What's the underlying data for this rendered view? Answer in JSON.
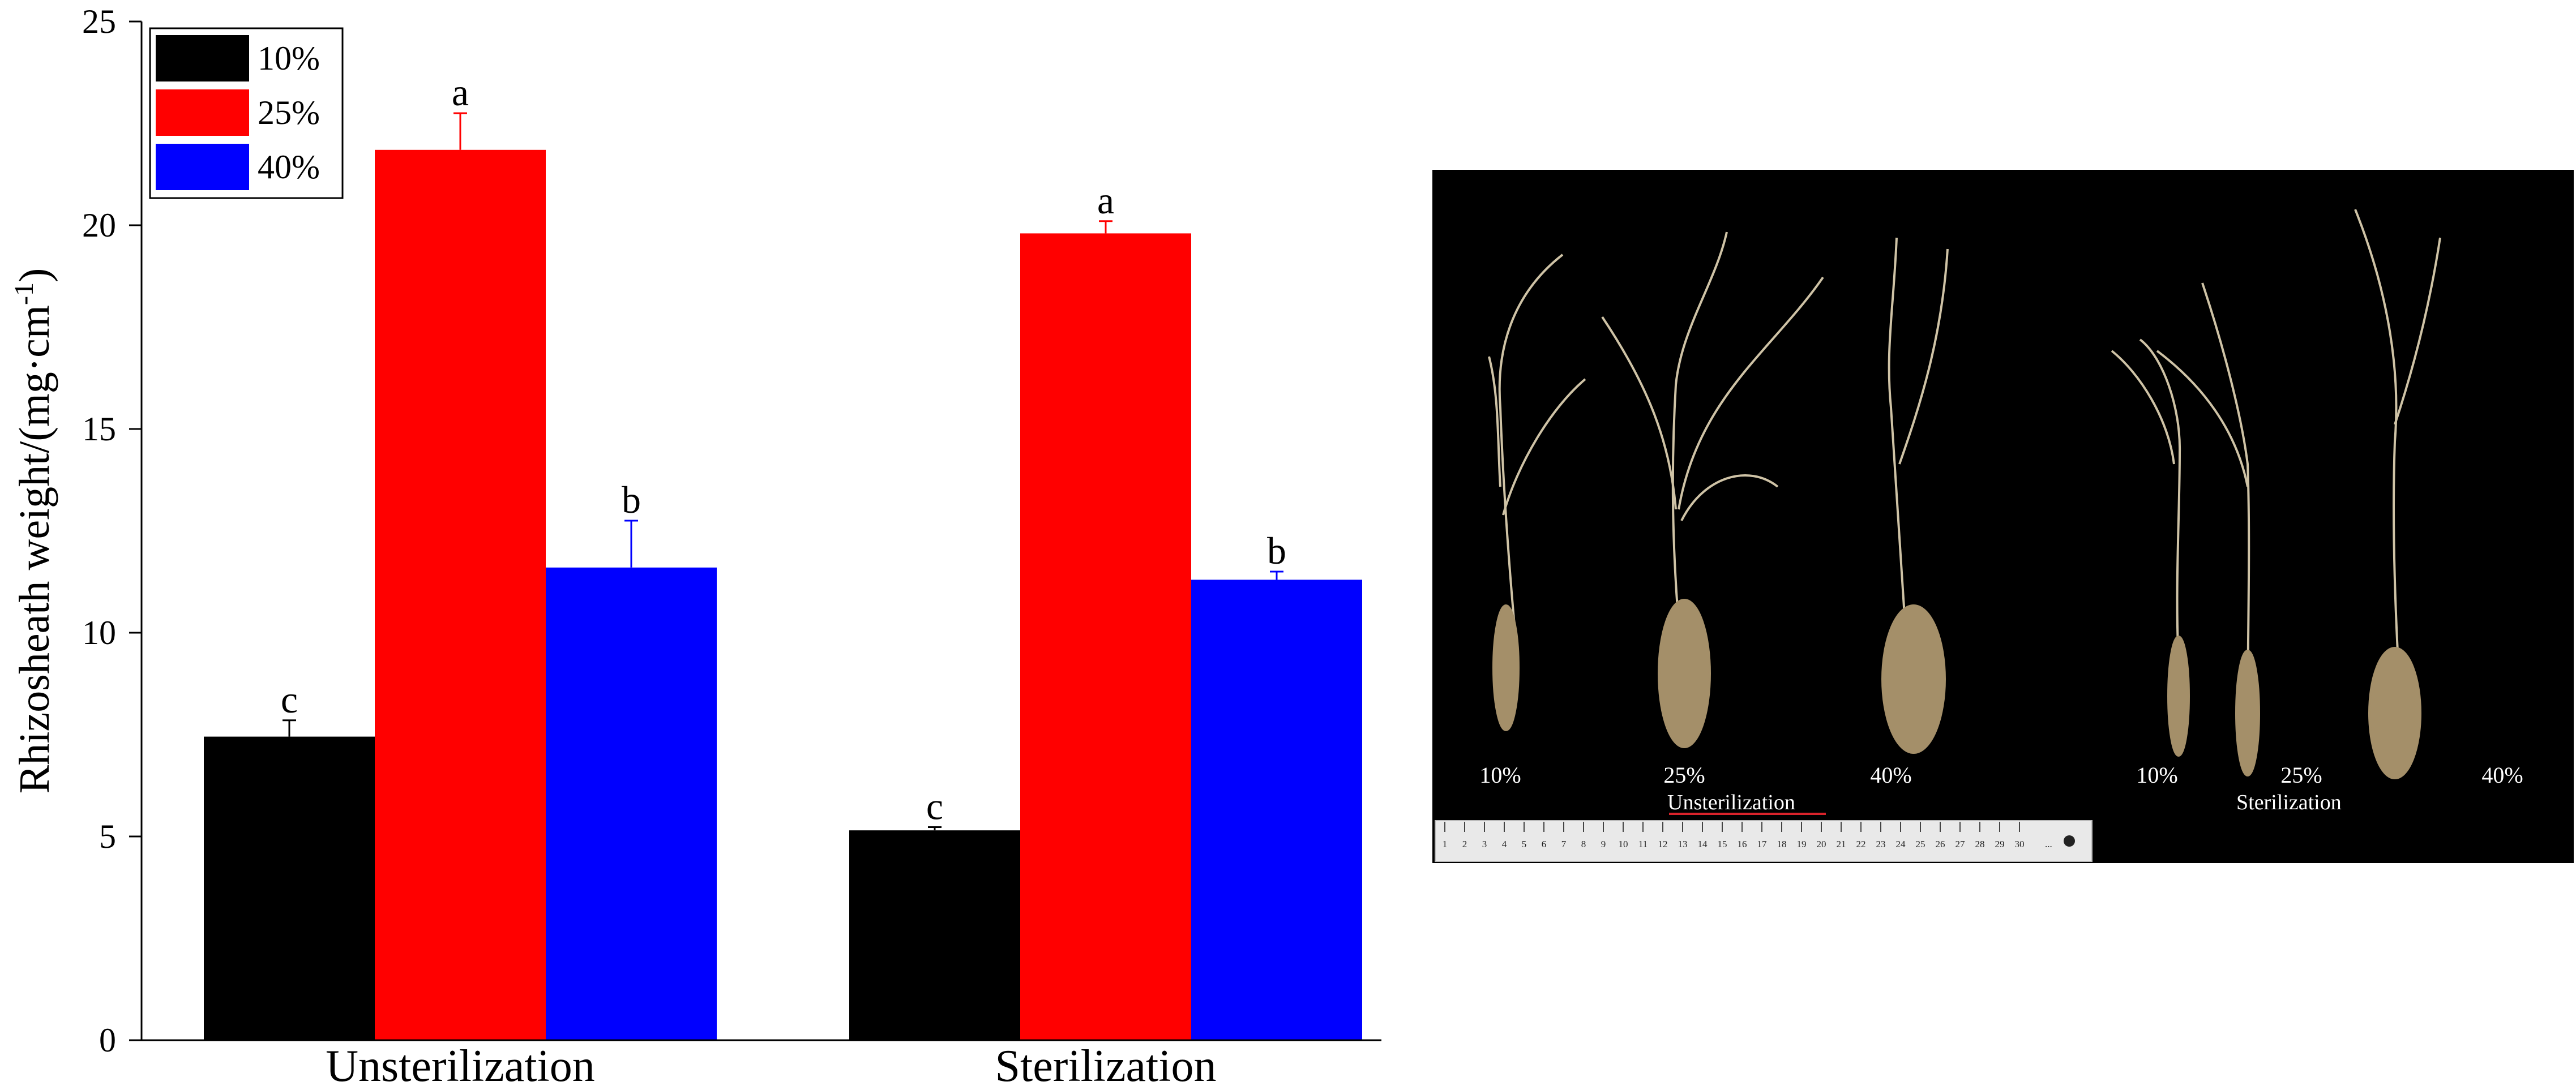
{
  "chart_data": {
    "type": "bar",
    "categories": [
      "Unsterilization",
      "Sterilization"
    ],
    "series": [
      {
        "name": "10%",
        "color": "#000000",
        "values": [
          7.45,
          5.15
        ],
        "errors": [
          0.4,
          0.08
        ],
        "letters": [
          "c",
          "c"
        ]
      },
      {
        "name": "25%",
        "color": "#ff0000",
        "values": [
          21.85,
          19.8
        ],
        "errors": [
          0.9,
          0.3
        ],
        "letters": [
          "a",
          "a"
        ]
      },
      {
        "name": "40%",
        "color": "#0000ff",
        "values": [
          11.6,
          11.3
        ],
        "errors": [
          1.15,
          0.2
        ],
        "letters": [
          "b",
          "b"
        ]
      }
    ],
    "ylabel": "Rhizosheath weight/(mg·cm",
    "ylabel_sup": "-1",
    "ylabel_close": ")",
    "ylim": [
      0,
      25
    ],
    "yticks": [
      0,
      5,
      10,
      15,
      20,
      25
    ],
    "legend_position": "top-left",
    "grid": false
  },
  "photo": {
    "unsterilized_labels": [
      "10%",
      "25%",
      "40%"
    ],
    "sterilized_labels": [
      "10%",
      "25%",
      "40%"
    ],
    "group_labels": [
      "Unsterilization",
      "Sterilization"
    ],
    "ruler_marks": [
      "1",
      "2",
      "3",
      "4",
      "5",
      "6",
      "7",
      "8",
      "9",
      "10",
      "11",
      "12",
      "13",
      "14",
      "15",
      "16",
      "17",
      "18",
      "19",
      "20",
      "21",
      "22",
      "23",
      "24",
      "25",
      "26",
      "27",
      "28",
      "29",
      "30"
    ],
    "ruler_suffix": "..."
  }
}
